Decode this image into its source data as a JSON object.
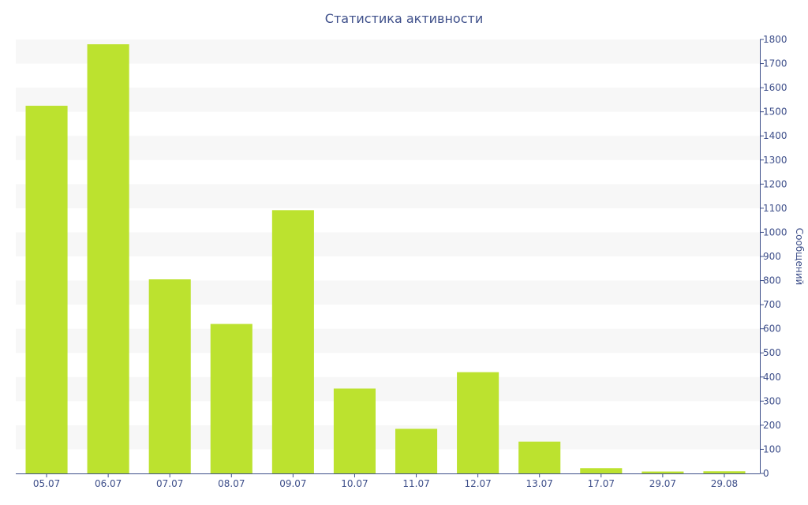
{
  "chart_data": {
    "type": "bar",
    "title": "Статистика активности",
    "xlabel": "",
    "ylabel": "Сообщений",
    "categories": [
      "05.07",
      "06.07",
      "07.07",
      "08.07",
      "09.07",
      "10.07",
      "11.07",
      "12.07",
      "13.07",
      "17.07",
      "29.07",
      "29.08"
    ],
    "values": [
      1525,
      1780,
      805,
      620,
      1092,
      352,
      185,
      420,
      132,
      22,
      8,
      9
    ],
    "ylim": [
      0,
      1800
    ],
    "yticks": [
      0,
      100,
      200,
      300,
      400,
      500,
      600,
      700,
      800,
      900,
      1000,
      1100,
      1200,
      1300,
      1400,
      1500,
      1600,
      1700,
      1800
    ],
    "y_axis_side": "right",
    "grid": "alternating horizontal bands",
    "legend": "none",
    "colors": {
      "bar": "#bce22f",
      "band": "#f7f7f7",
      "axis": "#3e4f8a",
      "text": "#3e4f8a"
    }
  }
}
